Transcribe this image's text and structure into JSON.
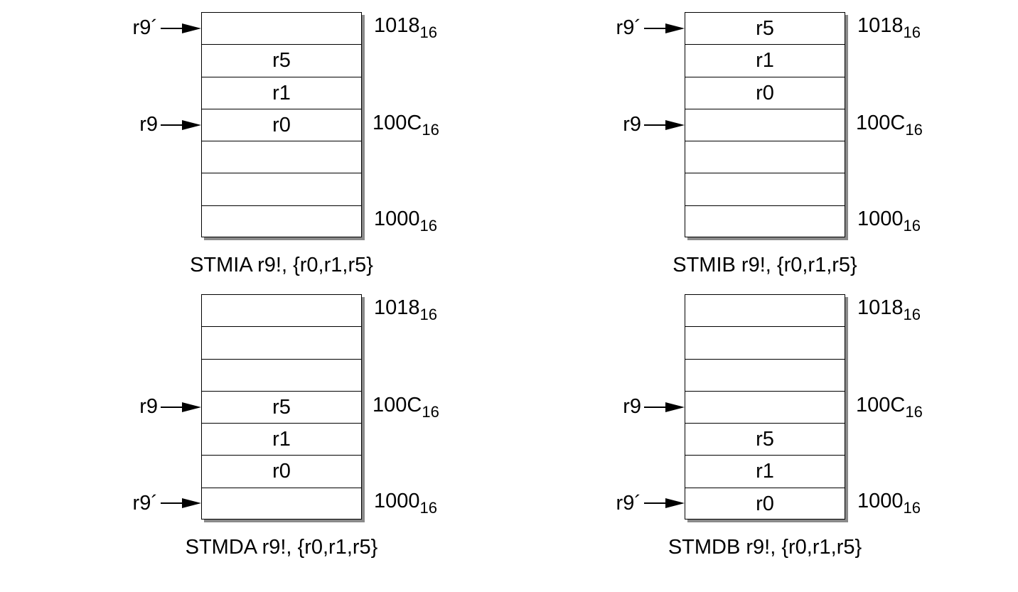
{
  "addresses": {
    "top": "1018",
    "mid": "100C",
    "bot": "1000",
    "base": "16"
  },
  "panels": [
    {
      "caption": "STMIA r9!, {r0,r1,r5}",
      "cells": [
        "",
        "r5",
        "r1",
        "r0",
        "",
        "",
        ""
      ],
      "pointers": [
        {
          "label": "r9´",
          "cell": 0
        },
        {
          "label": "r9",
          "cell": 3
        }
      ]
    },
    {
      "caption": "STMIB r9!, {r0,r1,r5}",
      "cells": [
        "r5",
        "r1",
        "r0",
        "",
        "",
        "",
        ""
      ],
      "pointers": [
        {
          "label": "r9´",
          "cell": 0
        },
        {
          "label": "r9",
          "cell": 3
        }
      ]
    },
    {
      "caption": "STMDA r9!, {r0,r1,r5}",
      "cells": [
        "",
        "",
        "",
        "r5",
        "r1",
        "r0",
        ""
      ],
      "pointers": [
        {
          "label": "r9",
          "cell": 3
        },
        {
          "label": "r9´",
          "cell": 6
        }
      ]
    },
    {
      "caption": "STMDB r9!, {r0,r1,r5}",
      "cells": [
        "",
        "",
        "",
        "",
        "r5",
        "r1",
        "r0"
      ],
      "pointers": [
        {
          "label": "r9",
          "cell": 3
        },
        {
          "label": "r9´",
          "cell": 6
        }
      ]
    }
  ]
}
